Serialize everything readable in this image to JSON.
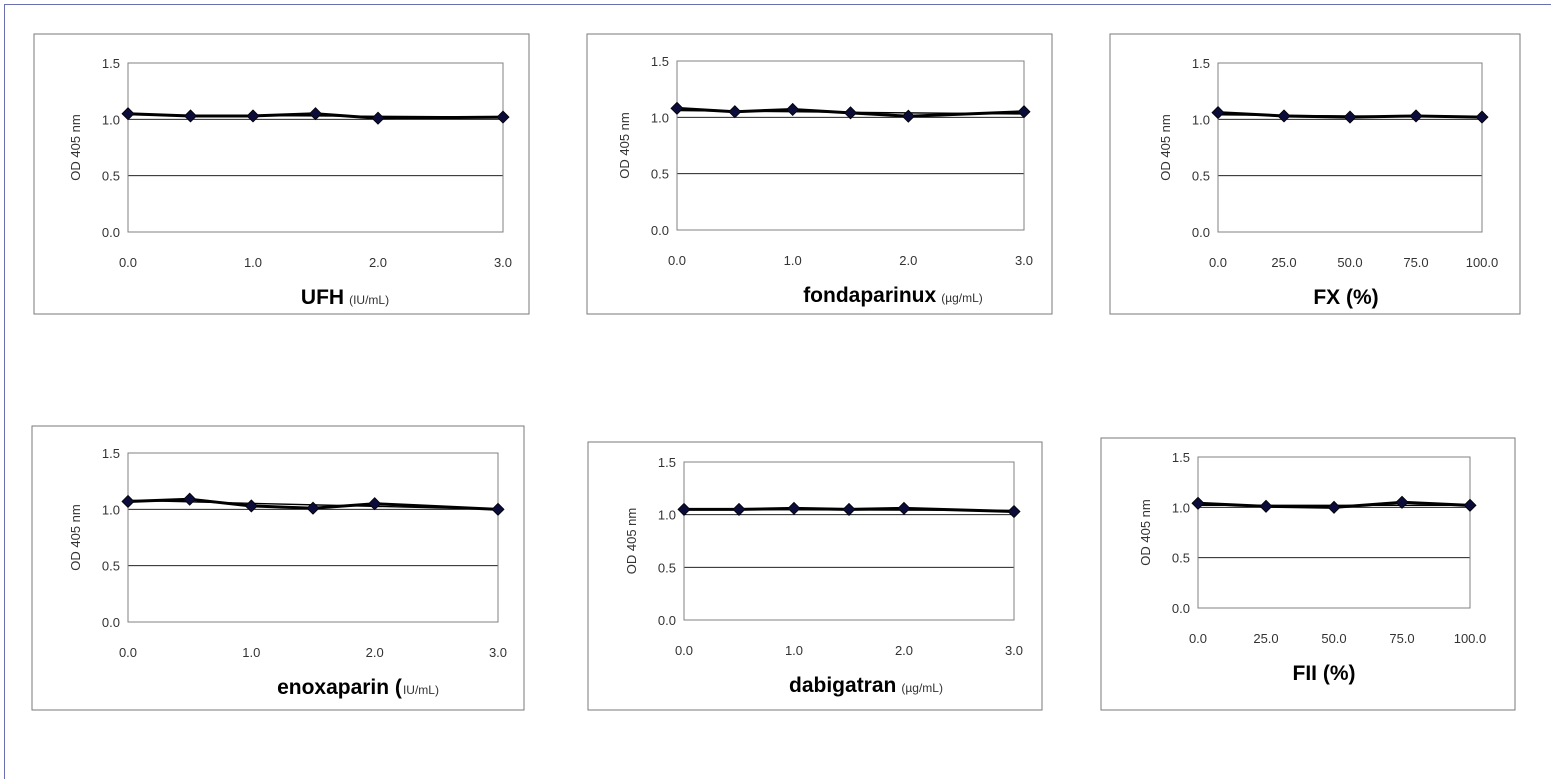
{
  "y_axis_label": "OD 405 nm",
  "chart_data": [
    {
      "type": "scatter",
      "x": [
        0.0,
        0.5,
        1.0,
        1.5,
        2.0,
        3.0
      ],
      "values": [
        1.05,
        1.03,
        1.03,
        1.05,
        1.01,
        1.02
      ],
      "xticks": [
        "0.0",
        "1.0",
        "2.0",
        "3.0"
      ],
      "xtick_values": [
        0,
        1,
        2,
        3
      ],
      "xlim": [
        0,
        3
      ],
      "ylim": [
        0,
        1.5
      ],
      "yticks": [
        "0.0",
        "0.5",
        "1.0",
        "1.5"
      ],
      "ylabel": "OD 405 nm",
      "xlabel": "UFH",
      "xlabel_unit": "(IU/mL)",
      "trend": [
        1.04,
        1.02
      ],
      "grid": true
    },
    {
      "type": "scatter",
      "x": [
        0.0,
        0.5,
        1.0,
        1.5,
        2.0,
        3.0
      ],
      "values": [
        1.08,
        1.05,
        1.07,
        1.04,
        1.01,
        1.05
      ],
      "xticks": [
        "0.0",
        "1.0",
        "2.0",
        "3.0"
      ],
      "xtick_values": [
        0,
        1,
        2,
        3
      ],
      "xlim": [
        0,
        3
      ],
      "ylim": [
        0,
        1.5
      ],
      "yticks": [
        "0.0",
        "0.5",
        "1.0",
        "1.5"
      ],
      "ylabel": "OD 405 nm",
      "xlabel": "fondaparinux",
      "xlabel_unit": "(µg/mL)",
      "trend": [
        1.06,
        1.03
      ],
      "grid": true
    },
    {
      "type": "scatter",
      "x": [
        0.0,
        25.0,
        50.0,
        75.0,
        100.0
      ],
      "values": [
        1.06,
        1.03,
        1.02,
        1.03,
        1.02
      ],
      "xticks": [
        "0.0",
        "25.0",
        "50.0",
        "75.0",
        "100.0"
      ],
      "xtick_values": [
        0,
        25,
        50,
        75,
        100
      ],
      "xlim": [
        0,
        100
      ],
      "ylim": [
        0,
        1.5
      ],
      "yticks": [
        "0.0",
        "0.5",
        "1.0",
        "1.5"
      ],
      "ylabel": "OD 405 nm",
      "xlabel": "FX (%)",
      "xlabel_unit": "",
      "trend": [
        1.04,
        1.02
      ],
      "grid": true
    },
    {
      "type": "scatter",
      "x": [
        0.0,
        0.5,
        1.0,
        1.5,
        2.0,
        3.0
      ],
      "values": [
        1.07,
        1.09,
        1.03,
        1.01,
        1.05,
        1.0
      ],
      "xticks": [
        "0.0",
        "1.0",
        "2.0",
        "3.0"
      ],
      "xtick_values": [
        0,
        1,
        2,
        3
      ],
      "xlim": [
        0,
        3
      ],
      "ylim": [
        0,
        1.5
      ],
      "yticks": [
        "0.0",
        "0.5",
        "1.0",
        "1.5"
      ],
      "ylabel": "OD 405 nm",
      "xlabel": "enoxaparin (",
      "xlabel_unit": "IU/mL)",
      "trend": [
        1.08,
        1.0
      ],
      "grid": true
    },
    {
      "type": "scatter",
      "x": [
        0.0,
        0.5,
        1.0,
        1.5,
        2.0,
        3.0
      ],
      "values": [
        1.05,
        1.05,
        1.06,
        1.05,
        1.06,
        1.03
      ],
      "xticks": [
        "0.0",
        "1.0",
        "2.0",
        "3.0"
      ],
      "xtick_values": [
        0,
        1,
        2,
        3
      ],
      "xlim": [
        0,
        3
      ],
      "ylim": [
        0,
        1.5
      ],
      "yticks": [
        "0.0",
        "0.5",
        "1.0",
        "1.5"
      ],
      "ylabel": "OD 405 nm",
      "xlabel": "dabigatran",
      "xlabel_unit": "(µg/mL)",
      "trend": [
        1.05,
        1.04
      ],
      "grid": true
    },
    {
      "type": "scatter",
      "x": [
        0.0,
        25.0,
        50.0,
        75.0,
        100.0
      ],
      "values": [
        1.04,
        1.01,
        1.0,
        1.05,
        1.02
      ],
      "xticks": [
        "0.0",
        "25.0",
        "50.0",
        "75.0",
        "100.0"
      ],
      "xtick_values": [
        0,
        25,
        50,
        75,
        100
      ],
      "xlim": [
        0,
        100
      ],
      "ylim": [
        0,
        1.5
      ],
      "yticks": [
        "0.0",
        "0.5",
        "1.0",
        "1.5"
      ],
      "ylabel": "OD 405 nm",
      "xlabel": "FII (%)",
      "xlabel_unit": "",
      "trend": [
        1.02,
        1.02
      ],
      "grid": true
    }
  ]
}
